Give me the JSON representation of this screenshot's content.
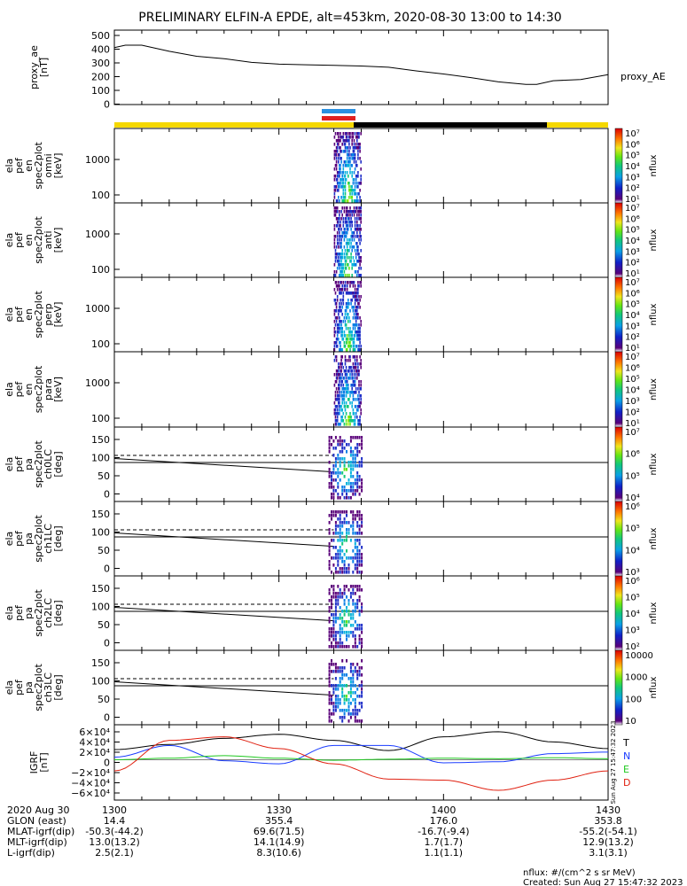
{
  "title": "PRELIMINARY ELFIN-A EPDE, alt=453km, 2020-08-30 13:00 to 14:30",
  "colors": {
    "sci_zone_yellow": "#f5d800",
    "shadow_black": "#000000",
    "bar_blue": "#2a90e0",
    "bar_red": "#e02020",
    "grf_T": "#000000",
    "grf_N": "#1a3cff",
    "grf_E": "#1ec81e",
    "grf_D": "#e02010"
  },
  "panels": [
    {
      "id": "proxy_ae",
      "ylabel": [
        "proxy_ae",
        "[nT]"
      ],
      "right_label": "proxy_AE",
      "yticks": [
        "500",
        "400",
        "300",
        "200",
        "100",
        "0"
      ]
    },
    {
      "id": "en_omni",
      "ylabel": [
        "ela",
        "pef",
        "en",
        "spec2plot",
        "omni",
        "[keV]"
      ],
      "yticks": [
        "1000",
        "100"
      ],
      "cbar_ticks": [
        "10⁷",
        "10⁶",
        "10⁵",
        "10⁴",
        "10³",
        "10²",
        "10¹"
      ],
      "cbar_label": "nflux"
    },
    {
      "id": "en_anti",
      "ylabel": [
        "ela",
        "pef",
        "en",
        "spec2plot",
        "anti",
        "[keV]"
      ],
      "yticks": [
        "1000",
        "100"
      ],
      "cbar_ticks": [
        "10⁷",
        "10⁶",
        "10⁵",
        "10⁴",
        "10³",
        "10²",
        "10¹"
      ],
      "cbar_label": "nflux"
    },
    {
      "id": "en_perp",
      "ylabel": [
        "ela",
        "pef",
        "en",
        "spec2plot",
        "perp",
        "[keV]"
      ],
      "yticks": [
        "1000",
        "100"
      ],
      "cbar_ticks": [
        "10⁷",
        "10⁶",
        "10⁵",
        "10⁴",
        "10³",
        "10²",
        "10¹"
      ],
      "cbar_label": "nflux"
    },
    {
      "id": "en_para",
      "ylabel": [
        "ela",
        "pef",
        "en",
        "spec2plot",
        "para",
        "[keV]"
      ],
      "yticks": [
        "1000",
        "100"
      ],
      "cbar_ticks": [
        "10⁷",
        "10⁶",
        "10⁵",
        "10⁴",
        "10³",
        "10²",
        "10¹"
      ],
      "cbar_label": "nflux"
    },
    {
      "id": "pa_ch0",
      "ylabel": [
        "ela",
        "pef",
        "pa",
        "spec2plot",
        "ch0LC",
        "[deg]"
      ],
      "yticks": [
        "150",
        "100",
        "50",
        "0"
      ],
      "cbar_ticks": [
        "10⁷",
        "10⁶",
        "10⁵",
        "10⁴"
      ],
      "cbar_label": "nflux"
    },
    {
      "id": "pa_ch1",
      "ylabel": [
        "ela",
        "pef",
        "pa",
        "spec2plot",
        "ch1LC",
        "[deg]"
      ],
      "yticks": [
        "150",
        "100",
        "50",
        "0"
      ],
      "cbar_ticks": [
        "10⁶",
        "10⁵",
        "10⁴",
        "10³"
      ],
      "cbar_label": "nflux"
    },
    {
      "id": "pa_ch2",
      "ylabel": [
        "ela",
        "pef",
        "pa",
        "spec2plot",
        "ch2LC",
        "[deg]"
      ],
      "yticks": [
        "150",
        "100",
        "50",
        "0"
      ],
      "cbar_ticks": [
        "10⁶",
        "10⁵",
        "10⁴",
        "10³",
        "10²"
      ],
      "cbar_label": "nflux"
    },
    {
      "id": "pa_ch3",
      "ylabel": [
        "ela",
        "pef",
        "pa",
        "spec2plot",
        "ch3LC",
        "[deg]"
      ],
      "yticks": [
        "150",
        "100",
        "50",
        "0"
      ],
      "cbar_ticks": [
        "10000",
        "1000",
        "100",
        "10"
      ],
      "cbar_label": "nflux"
    },
    {
      "id": "igrf",
      "ylabel": [
        "IGRF",
        "[nT]"
      ],
      "yticks": [
        "6×10⁴",
        "4×10⁴",
        "2×10⁴",
        "0",
        "−2×10⁴",
        "−4×10⁴",
        "−6×10⁴"
      ],
      "legend": [
        "T",
        "N",
        "E",
        "D"
      ],
      "side_note": "Sun Aug 27 15:47:32 2023"
    }
  ],
  "footer": {
    "rows": [
      {
        "label": "2020 Aug 30",
        "values": [
          "1300",
          "1330",
          "1400",
          "1430"
        ]
      },
      {
        "label": "GLON (east)",
        "values": [
          "14.4",
          "355.4",
          "176.0",
          "353.8"
        ]
      },
      {
        "label": "MLAT-igrf(dip)",
        "values": [
          "-50.3(-44.2)",
          "69.6(71.5)",
          "-16.7(-9.4)",
          "-55.2(-54.1)"
        ]
      },
      {
        "label": "MLT-igrf(dip)",
        "values": [
          "13.0(13.2)",
          "14.1(14.9)",
          "1.7(1.7)",
          "12.9(13.2)"
        ]
      },
      {
        "label": "L-igrf(dip)",
        "values": [
          "2.5(2.1)",
          "8.3(10.6)",
          "1.1(1.1)",
          "3.1(3.1)"
        ]
      }
    ],
    "units_note": "nflux: #/(cm^2 s sr MeV)",
    "created": "Created: Sun Aug 27 15:47:32 2023"
  },
  "chart_data": {
    "type": "line",
    "title": "PRELIMINARY ELFIN-A EPDE, alt=453km, 2020-08-30 13:00 to 14:30",
    "xlabel": "",
    "x_ticks": [
      "1300",
      "1330",
      "1400",
      "1430"
    ],
    "xlim_minutes": [
      0,
      90
    ],
    "series": [
      {
        "name": "proxy_AE",
        "x": [
          0,
          2,
          5,
          10,
          15,
          20,
          25,
          30,
          35,
          40,
          45,
          50,
          55,
          60,
          65,
          70,
          75,
          77,
          80,
          85,
          90
        ],
        "y": [
          400,
          420,
          420,
          370,
          330,
          310,
          280,
          265,
          260,
          255,
          250,
          240,
          210,
          185,
          155,
          120,
          100,
          100,
          130,
          140,
          180
        ],
        "ylabel": "proxy_ae [nT]",
        "ylim": [
          0,
          500
        ]
      },
      {
        "name": "T",
        "x": [
          0,
          10,
          20,
          30,
          40,
          50,
          60,
          70,
          80,
          90
        ],
        "y": [
          20000,
          30000,
          42000,
          50000,
          38000,
          18000,
          45000,
          55000,
          35000,
          22000
        ],
        "ylabel": "IGRF [nT]",
        "ylim": [
          -60000,
          60000
        ]
      },
      {
        "name": "N",
        "x": [
          0,
          10,
          20,
          30,
          40,
          50,
          60,
          70,
          80,
          90
        ],
        "y": [
          5000,
          28000,
          -2000,
          -8000,
          28000,
          28000,
          -6000,
          -4000,
          12000,
          15000
        ],
        "ylim": [
          -60000,
          60000
        ]
      },
      {
        "name": "E",
        "x": [
          0,
          10,
          20,
          30,
          40,
          50,
          60,
          70,
          80,
          90
        ],
        "y": [
          0,
          3000,
          8000,
          3000,
          -1000,
          1000,
          3000,
          2000,
          4000,
          2000
        ],
        "ylim": [
          -60000,
          60000
        ]
      },
      {
        "name": "D",
        "x": [
          0,
          10,
          20,
          30,
          40,
          50,
          60,
          70,
          80,
          90
        ],
        "y": [
          -22000,
          38000,
          45000,
          22000,
          -8000,
          -38000,
          -40000,
          -60000,
          -40000,
          -22000
        ],
        "ylim": [
          -60000,
          60000
        ]
      }
    ],
    "spectrogram_active_window_minutes": [
      40,
      45
    ]
  }
}
